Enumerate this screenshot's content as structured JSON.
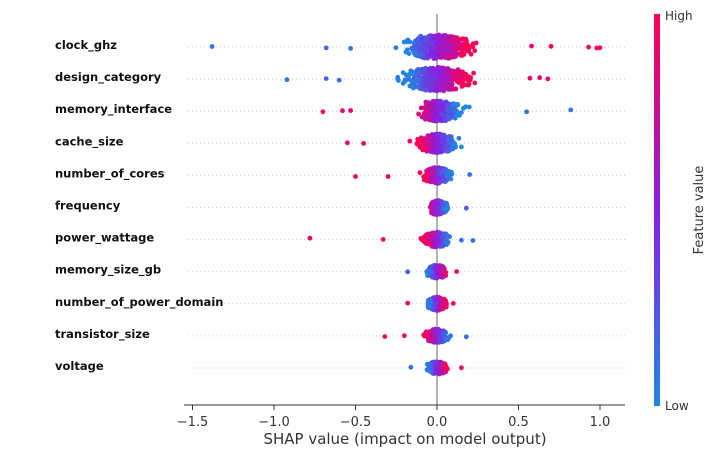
{
  "chart_data": {
    "type": "scatter",
    "subtype": "shap-beeswarm",
    "title": "",
    "xlabel": "SHAP value (impact on model output)",
    "xlim": [
      -1.5,
      1.05
    ],
    "xticks": [
      -1.5,
      -1.0,
      -0.5,
      0.0,
      0.5,
      1.0
    ],
    "xtick_labels": [
      "−1.5",
      "−1.0",
      "−0.5",
      "0.0",
      "0.5",
      "1.0"
    ],
    "colorbar": {
      "title": "Feature value",
      "high_label": "High",
      "low_label": "Low",
      "high_color": "#ff0052",
      "low_color": "#1e88e5"
    },
    "features": [
      {
        "name": "clock_ghz",
        "min": -1.38,
        "max": 1.0,
        "spread": 0.35,
        "density": 1.0,
        "neg_color": "low",
        "pos_color": "high",
        "outliers": [
          [
            -1.38,
            0.1
          ],
          [
            -0.68,
            0.15
          ],
          [
            -0.53,
            0.1
          ],
          [
            0.58,
            0.9
          ],
          [
            0.7,
            0.95
          ],
          [
            0.93,
            0.95
          ],
          [
            0.98,
            0.95
          ],
          [
            1.0,
            0.9
          ]
        ]
      },
      {
        "name": "design_category",
        "min": -0.92,
        "max": 0.68,
        "spread": 0.33,
        "density": 1.0,
        "neg_color": "low",
        "pos_color": "high",
        "outliers": [
          [
            -0.92,
            0.1
          ],
          [
            -0.68,
            0.15
          ],
          [
            -0.6,
            0.15
          ],
          [
            0.57,
            0.9
          ],
          [
            0.63,
            0.9
          ],
          [
            0.68,
            0.9
          ]
        ]
      },
      {
        "name": "memory_interface",
        "min": -0.7,
        "max": 0.82,
        "spread": 0.24,
        "density": 0.8,
        "neg_color": "high",
        "pos_color": "low",
        "outliers": [
          [
            -0.7,
            0.9
          ],
          [
            -0.58,
            0.9
          ],
          [
            -0.53,
            0.9
          ],
          [
            0.55,
            0.1
          ],
          [
            0.82,
            0.1
          ]
        ]
      },
      {
        "name": "cache_size",
        "min": -0.55,
        "max": 0.2,
        "spread": 0.2,
        "density": 0.7,
        "neg_color": "high",
        "pos_color": "low",
        "outliers": [
          [
            -0.55,
            0.9
          ],
          [
            -0.45,
            0.95
          ]
        ]
      },
      {
        "name": "number_of_cores",
        "min": -0.5,
        "max": 0.2,
        "spread": 0.13,
        "density": 0.55,
        "neg_color": "high",
        "pos_color": "low",
        "outliers": [
          [
            -0.5,
            0.95
          ],
          [
            -0.3,
            0.9
          ],
          [
            0.2,
            0.1
          ]
        ]
      },
      {
        "name": "frequency",
        "min": -0.07,
        "max": 0.18,
        "spread": 0.1,
        "density": 0.45,
        "neg_color": "high",
        "pos_color": "low",
        "outliers": [
          [
            0.18,
            0.2
          ]
        ]
      },
      {
        "name": "power_wattage",
        "min": -0.78,
        "max": 0.22,
        "spread": 0.12,
        "density": 0.5,
        "neg_color": "high",
        "pos_color": "low",
        "outliers": [
          [
            -0.78,
            0.95
          ],
          [
            -0.33,
            0.9
          ],
          [
            0.15,
            0.1
          ],
          [
            0.22,
            0.1
          ]
        ]
      },
      {
        "name": "memory_size_gb",
        "min": -0.18,
        "max": 0.12,
        "spread": 0.1,
        "density": 0.4,
        "neg_color": "low",
        "pos_color": "high",
        "outliers": [
          [
            -0.18,
            0.2
          ],
          [
            0.12,
            0.9
          ]
        ]
      },
      {
        "name": "number_of_power_domain",
        "min": -0.18,
        "max": 0.1,
        "spread": 0.09,
        "density": 0.4,
        "neg_color": "low",
        "pos_color": "high",
        "outliers": [
          [
            -0.18,
            0.9
          ],
          [
            0.1,
            0.9
          ]
        ]
      },
      {
        "name": "transistor_size",
        "min": -0.32,
        "max": 0.18,
        "spread": 0.11,
        "density": 0.42,
        "neg_color": "high",
        "pos_color": "low",
        "outliers": [
          [
            -0.32,
            0.95
          ],
          [
            -0.2,
            0.9
          ],
          [
            0.18,
            0.1
          ]
        ]
      },
      {
        "name": "voltage",
        "min": -0.16,
        "max": 0.15,
        "spread": 0.09,
        "density": 0.4,
        "neg_color": "low",
        "pos_color": "high",
        "outliers": [
          [
            -0.16,
            0.1
          ],
          [
            0.15,
            0.9
          ]
        ]
      }
    ]
  }
}
